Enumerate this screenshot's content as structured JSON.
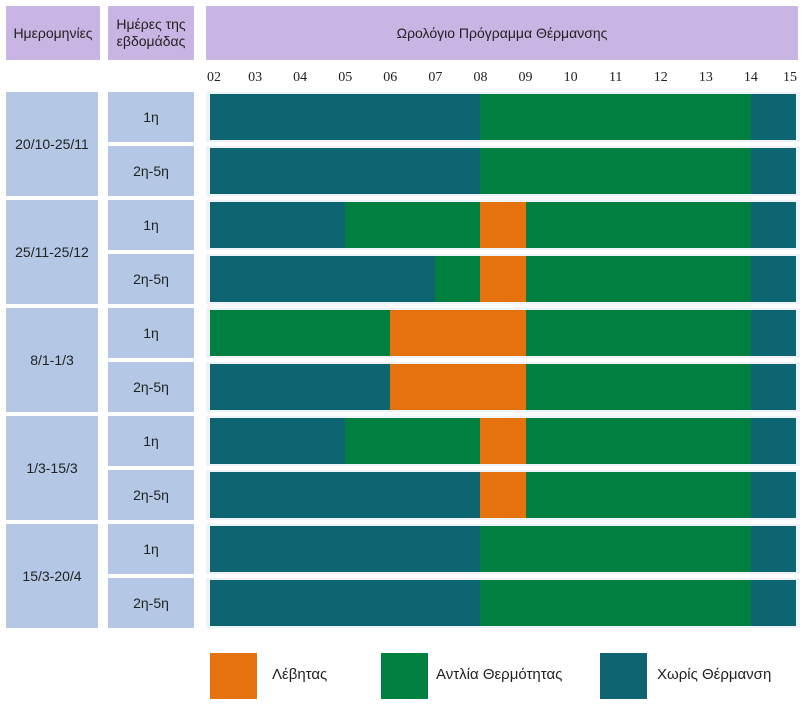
{
  "header": {
    "dates_label": "Ημερομηνίες",
    "days_label": "Ημέρες της εβδομάδας",
    "title": "Ωρολόγιο Πρόγραμμα Θέρμανσης"
  },
  "colors": {
    "boiler": "#e5720e",
    "heat_pump": "#008040",
    "no_heating": "#0e6471"
  },
  "chart_data": {
    "type": "gantt",
    "title": "Ωρολόγιο Πρόγραμμα Θέρμανσης",
    "x_ticks": [
      "02",
      "03",
      "04",
      "05",
      "06",
      "07",
      "08",
      "09",
      "10",
      "11",
      "12",
      "13",
      "14",
      "15"
    ],
    "xlim": [
      2,
      15
    ],
    "legend": [
      {
        "key": "boiler",
        "label": "Λέβητας"
      },
      {
        "key": "heat_pump",
        "label": "Αντλία Θερμότητας"
      },
      {
        "key": "no_heating",
        "label": "Χωρίς Θέρμανση"
      }
    ],
    "groups": [
      {
        "dates": "20/10-25/11",
        "rows": [
          {
            "days": "1η",
            "segments": [
              {
                "start": 2,
                "end": 8,
                "mode": "no_heating"
              },
              {
                "start": 8,
                "end": 14,
                "mode": "heat_pump"
              },
              {
                "start": 14,
                "end": 15,
                "mode": "no_heating"
              }
            ]
          },
          {
            "days": "2η-5η",
            "segments": [
              {
                "start": 2,
                "end": 8,
                "mode": "no_heating"
              },
              {
                "start": 8,
                "end": 14,
                "mode": "heat_pump"
              },
              {
                "start": 14,
                "end": 15,
                "mode": "no_heating"
              }
            ]
          }
        ]
      },
      {
        "dates": "25/11-25/12",
        "rows": [
          {
            "days": "1η",
            "segments": [
              {
                "start": 2,
                "end": 5,
                "mode": "no_heating"
              },
              {
                "start": 5,
                "end": 8,
                "mode": "heat_pump"
              },
              {
                "start": 8,
                "end": 9,
                "mode": "boiler"
              },
              {
                "start": 9,
                "end": 14,
                "mode": "heat_pump"
              },
              {
                "start": 14,
                "end": 15,
                "mode": "no_heating"
              }
            ]
          },
          {
            "days": "2η-5η",
            "segments": [
              {
                "start": 2,
                "end": 7,
                "mode": "no_heating"
              },
              {
                "start": 7,
                "end": 8,
                "mode": "heat_pump"
              },
              {
                "start": 8,
                "end": 9,
                "mode": "boiler"
              },
              {
                "start": 9,
                "end": 14,
                "mode": "heat_pump"
              },
              {
                "start": 14,
                "end": 15,
                "mode": "no_heating"
              }
            ]
          }
        ]
      },
      {
        "dates": "8/1-1/3",
        "rows": [
          {
            "days": "1η",
            "segments": [
              {
                "start": 2,
                "end": 6,
                "mode": "heat_pump"
              },
              {
                "start": 6,
                "end": 9,
                "mode": "boiler"
              },
              {
                "start": 9,
                "end": 14,
                "mode": "heat_pump"
              },
              {
                "start": 14,
                "end": 15,
                "mode": "no_heating"
              }
            ]
          },
          {
            "days": "2η-5η",
            "segments": [
              {
                "start": 2,
                "end": 6,
                "mode": "no_heating"
              },
              {
                "start": 6,
                "end": 9,
                "mode": "boiler"
              },
              {
                "start": 9,
                "end": 14,
                "mode": "heat_pump"
              },
              {
                "start": 14,
                "end": 15,
                "mode": "no_heating"
              }
            ]
          }
        ]
      },
      {
        "dates": "1/3-15/3",
        "rows": [
          {
            "days": "1η",
            "segments": [
              {
                "start": 2,
                "end": 5,
                "mode": "no_heating"
              },
              {
                "start": 5,
                "end": 8,
                "mode": "heat_pump"
              },
              {
                "start": 8,
                "end": 9,
                "mode": "boiler"
              },
              {
                "start": 9,
                "end": 14,
                "mode": "heat_pump"
              },
              {
                "start": 14,
                "end": 15,
                "mode": "no_heating"
              }
            ]
          },
          {
            "days": "2η-5η",
            "segments": [
              {
                "start": 2,
                "end": 8,
                "mode": "no_heating"
              },
              {
                "start": 8,
                "end": 9,
                "mode": "boiler"
              },
              {
                "start": 9,
                "end": 14,
                "mode": "heat_pump"
              },
              {
                "start": 14,
                "end": 15,
                "mode": "no_heating"
              }
            ]
          }
        ]
      },
      {
        "dates": "15/3-20/4",
        "rows": [
          {
            "days": "1η",
            "segments": [
              {
                "start": 2,
                "end": 8,
                "mode": "no_heating"
              },
              {
                "start": 8,
                "end": 14,
                "mode": "heat_pump"
              },
              {
                "start": 14,
                "end": 15,
                "mode": "no_heating"
              }
            ]
          },
          {
            "days": "2η-5η",
            "segments": [
              {
                "start": 2,
                "end": 8,
                "mode": "no_heating"
              },
              {
                "start": 8,
                "end": 14,
                "mode": "heat_pump"
              },
              {
                "start": 14,
                "end": 15,
                "mode": "no_heating"
              }
            ]
          }
        ]
      }
    ]
  }
}
